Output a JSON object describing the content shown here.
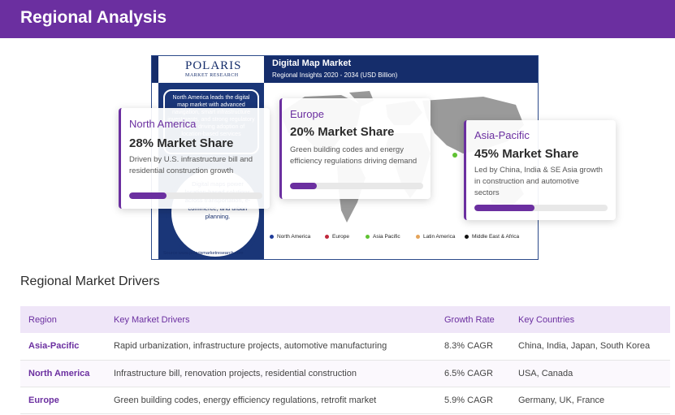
{
  "header": {
    "title": "Regional Analysis"
  },
  "infographic": {
    "logo_main": "POLARIS",
    "logo_sub": "MARKET RESEARCH",
    "title": "Digital Map Market",
    "subtitle": "Regional Insights 2020 - 2034 (USD Billion)",
    "left_text": "North America leads the digital map market with advanced navigation, smart infrastructure investments, and strong regulatory support driving adoption of location-based services",
    "circle_text": "Digital maps power location-based solutions across transportation, e-commerce, and urban planning.",
    "legend": [
      {
        "label": "North America",
        "color": "#1f3c9a"
      },
      {
        "label": "Europe",
        "color": "#c0283c"
      },
      {
        "label": "Asia Pacific",
        "color": "#5fc232"
      },
      {
        "label": "Latin America",
        "color": "#e4a35a"
      },
      {
        "label": "Middle East & Africa",
        "color": "#111111"
      }
    ],
    "source": "Source:www.polarismarketresearch.com"
  },
  "cards": [
    {
      "region": "North America",
      "share": "28% Market Share",
      "desc": "Driven by U.S. infrastructure bill and residential construction growth",
      "progress": 0.28
    },
    {
      "region": "Europe",
      "share": "20% Market Share",
      "desc": "Green building codes and energy efficiency regulations driving demand",
      "progress": 0.2
    },
    {
      "region": "Asia-Pacific",
      "share": "45% Market Share",
      "desc": "Led by China, India & SE Asia growth in construction and automotive sectors",
      "progress": 0.45
    }
  ],
  "drivers": {
    "title": "Regional Market Drivers",
    "columns": [
      "Region",
      "Key Market Drivers",
      "Growth Rate",
      "Key Countries"
    ],
    "rows": [
      {
        "region": "Asia-Pacific",
        "drivers": "Rapid urbanization, infrastructure projects, automotive manufacturing",
        "growth": "8.3% CAGR",
        "countries": "China, India, Japan, South Korea"
      },
      {
        "region": "North America",
        "drivers": "Infrastructure bill, renovation projects, residential construction",
        "growth": "6.5% CAGR",
        "countries": "USA, Canada"
      },
      {
        "region": "Europe",
        "drivers": "Green building codes, energy efficiency regulations, retrofit market",
        "growth": "5.9% CAGR",
        "countries": "Germany, UK, France"
      }
    ]
  }
}
